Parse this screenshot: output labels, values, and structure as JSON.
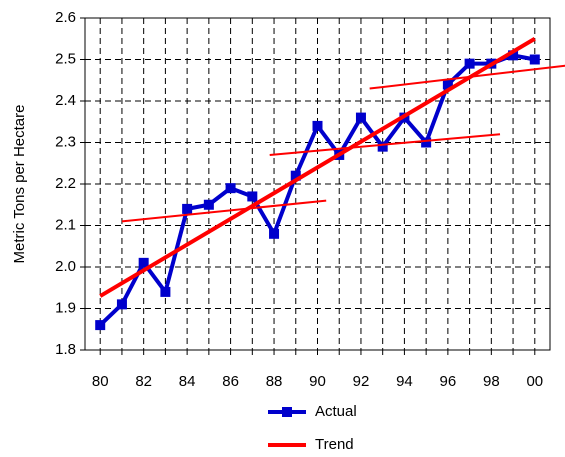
{
  "chart_data": {
    "type": "line",
    "y_label": "Metric Tons per Hectare",
    "x": [
      80,
      81,
      82,
      83,
      84,
      85,
      86,
      87,
      88,
      89,
      90,
      91,
      92,
      93,
      94,
      95,
      96,
      97,
      98,
      99,
      100
    ],
    "series": [
      {
        "name": "Actual",
        "color": "#0000cc",
        "marker": "square",
        "width": 4,
        "values": [
          1.86,
          1.91,
          2.01,
          1.94,
          2.14,
          2.15,
          2.19,
          2.17,
          2.08,
          2.22,
          2.34,
          2.27,
          2.36,
          2.29,
          2.36,
          2.3,
          2.44,
          2.49,
          2.49,
          2.51,
          2.5
        ]
      },
      {
        "name": "Trend",
        "color": "#ff0000",
        "width": 4,
        "x": [
          80,
          100
        ],
        "values": [
          1.93,
          2.55
        ]
      },
      {
        "color": "#ff0000",
        "width": 2,
        "x": [
          81,
          90.4,
          null,
          87.8,
          98.4,
          null,
          92.4,
          101.4
        ],
        "values": [
          2.11,
          2.16,
          null,
          2.27,
          2.32,
          null,
          2.43,
          2.485
        ]
      }
    ],
    "xlim": [
      79.3,
      100.7
    ],
    "xticks": [
      80,
      82,
      84,
      86,
      88,
      90,
      92,
      94,
      96,
      98,
      {
        "value": 100,
        "label": "00"
      }
    ],
    "x_minor_ticks": [
      81,
      83,
      85,
      87,
      89,
      91,
      93,
      95,
      97,
      99
    ],
    "ylim": [
      1.8,
      2.6
    ],
    "yticks": [
      1.8,
      1.9,
      {
        "value": 2.0,
        "label": "2.0"
      },
      2.1,
      2.2,
      2.3,
      2.4,
      2.5,
      2.6
    ],
    "grid": true
  }
}
